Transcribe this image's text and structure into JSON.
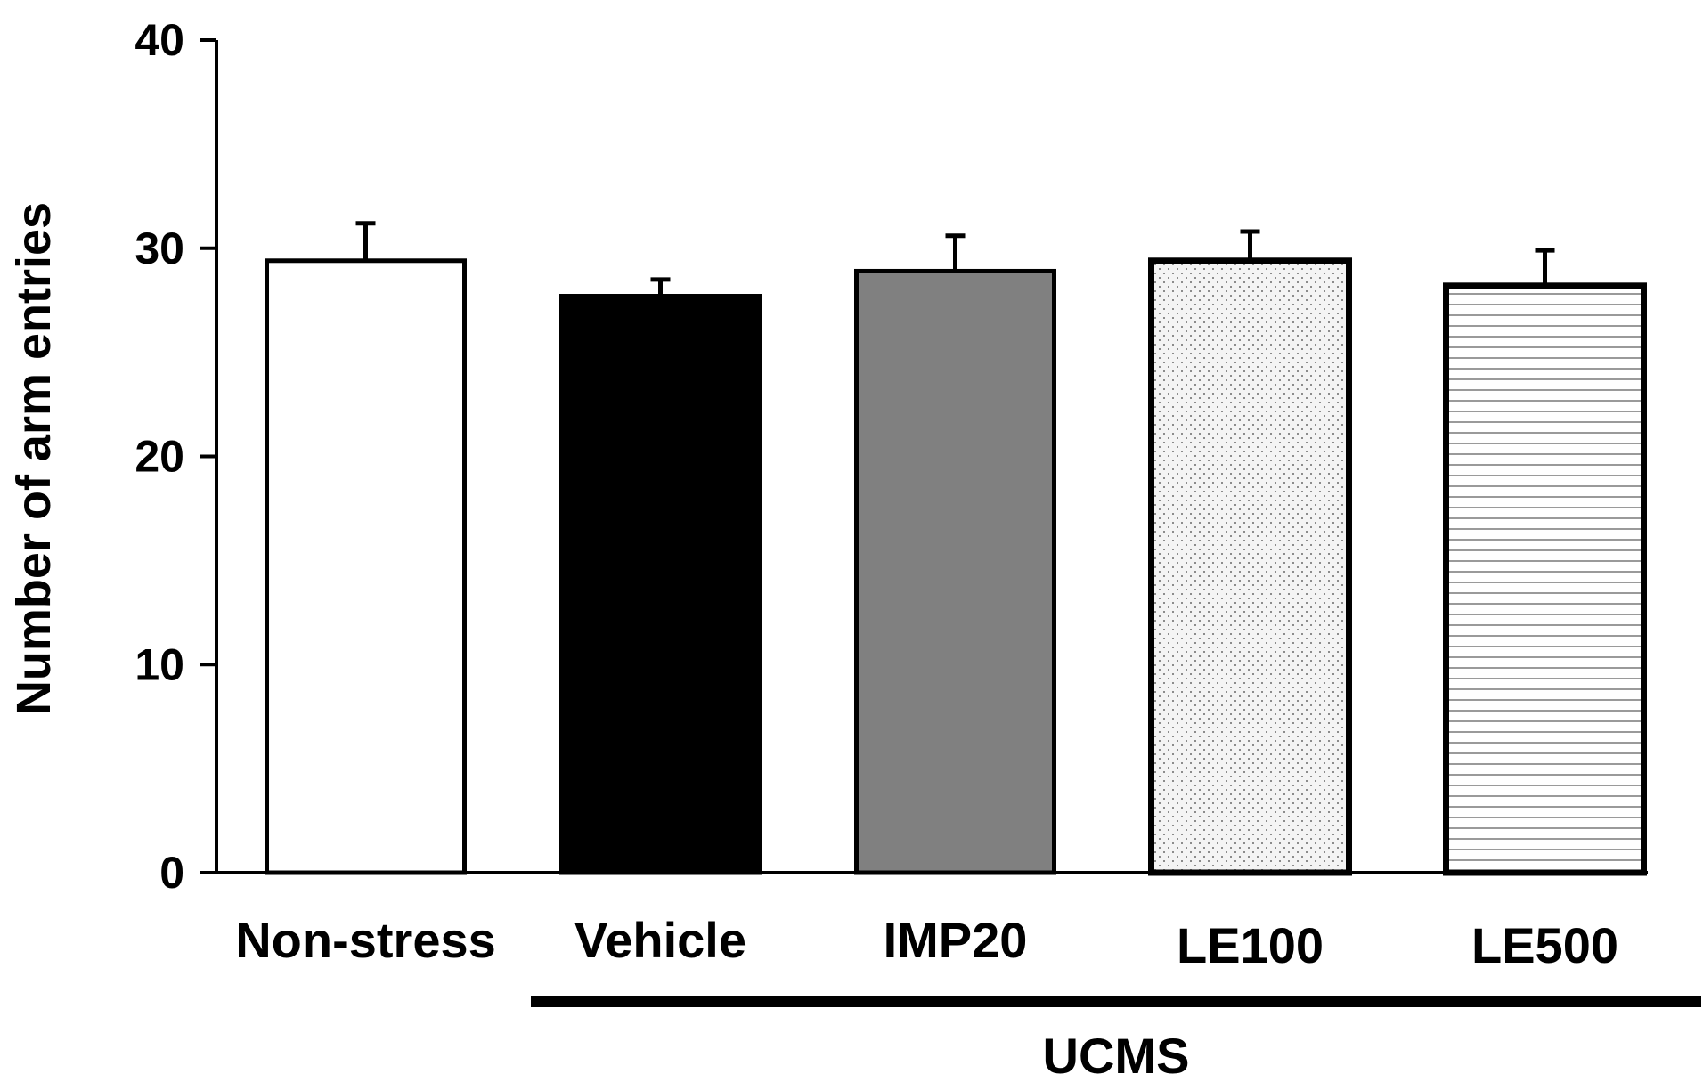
{
  "chart_data": {
    "type": "bar",
    "title": "",
    "xlabel": "",
    "ylabel": "Number of arm entries",
    "ylim": [
      0,
      40
    ],
    "yticks": [
      0,
      10,
      20,
      30,
      40
    ],
    "grid": false,
    "legend": "none",
    "categories": [
      "Non-stress",
      "Vehicle",
      "IMP20",
      "LE100",
      "LE500"
    ],
    "values": [
      29.4,
      27.7,
      28.9,
      29.4,
      28.2
    ],
    "errors": [
      1.8,
      0.8,
      1.7,
      1.4,
      1.7
    ],
    "bar_fills": [
      "white",
      "black",
      "gray",
      "dotted",
      "horizontal-lines"
    ],
    "colors": {
      "white": "#ffffff",
      "black": "#000000",
      "gray": "#808080",
      "dotted_bg": "#f4f4f4",
      "dots": "#8c8c8c",
      "stripes": "#9a9a9a"
    },
    "group": {
      "label": "UCMS",
      "categories": [
        "Vehicle",
        "IMP20",
        "LE100",
        "LE500"
      ]
    }
  }
}
